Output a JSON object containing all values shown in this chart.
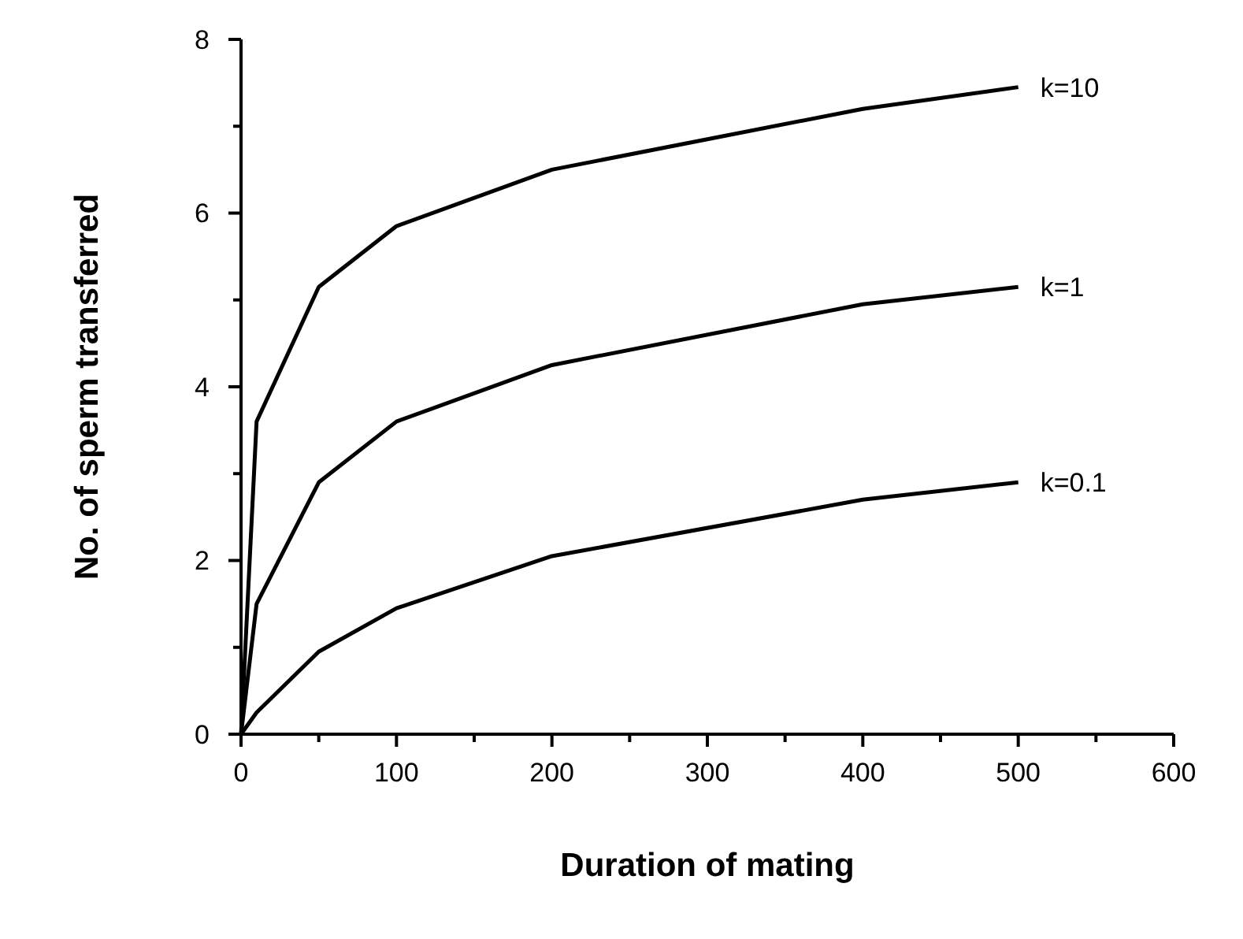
{
  "chart_data": {
    "type": "line",
    "xlabel": "Duration of mating",
    "ylabel": "No. of sperm transferred",
    "xlim": [
      0,
      600
    ],
    "xticks": [
      0,
      {
        "value": 50,
        "label": null
      },
      100,
      {
        "value": 150,
        "label": null
      },
      200,
      {
        "value": 250,
        "label": null
      },
      300,
      {
        "value": 350,
        "label": null
      },
      400,
      {
        "value": 450,
        "label": null
      },
      500,
      {
        "value": 550,
        "label": null
      },
      600
    ],
    "ylim": [
      0,
      8
    ],
    "yticks": [
      0,
      {
        "value": 1,
        "label": null
      },
      2,
      {
        "value": 3,
        "label": null
      },
      4,
      {
        "value": 5,
        "label": null
      },
      6,
      {
        "value": 7,
        "label": null
      },
      8
    ],
    "grid": false,
    "marker": "none",
    "line_style": "solid",
    "series": [
      {
        "name": "k=10",
        "color": "#000000",
        "x": [
          0,
          10,
          50,
          100,
          200,
          300,
          400,
          500
        ],
        "values": [
          0,
          3.6,
          5.15,
          5.85,
          6.5,
          6.85,
          7.2,
          7.45
        ]
      },
      {
        "name": "k=1",
        "color": "#000000",
        "x": [
          0,
          10,
          50,
          100,
          200,
          400,
          500
        ],
        "values": [
          0,
          1.5,
          2.9,
          3.6,
          4.25,
          4.95,
          5.15
        ]
      },
      {
        "name": "k=0.1",
        "color": "#000000",
        "x": [
          0,
          10,
          50,
          100,
          200,
          400,
          500
        ],
        "values": [
          0,
          0.25,
          0.95,
          1.45,
          2.05,
          2.7,
          2.9
        ]
      }
    ]
  }
}
